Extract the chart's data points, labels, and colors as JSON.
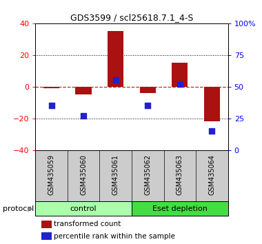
{
  "title": "GDS3599 / scl25618.7.1_4-S",
  "samples": [
    "GSM435059",
    "GSM435060",
    "GSM435061",
    "GSM435062",
    "GSM435063",
    "GSM435064"
  ],
  "transformed_count": [
    -1,
    -5,
    35,
    -4,
    15,
    -22
  ],
  "percentile_rank": [
    35,
    27,
    55,
    35,
    52,
    15
  ],
  "ylim_left": [
    -40,
    40
  ],
  "ylim_right": [
    0,
    100
  ],
  "yticks_left": [
    -40,
    -20,
    0,
    20,
    40
  ],
  "yticks_right": [
    0,
    25,
    50,
    75,
    100
  ],
  "ytick_labels_right": [
    "0",
    "25",
    "50",
    "75",
    "100%"
  ],
  "bar_color": "#aa1111",
  "dot_color": "#2222cc",
  "zero_line_color": "#cc2222",
  "grid_color": "#222222",
  "protocol_label": "protocol",
  "control_label": "control",
  "eset_label": "Eset depletion",
  "legend_red": "transformed count",
  "legend_blue": "percentile rank within the sample",
  "control_color": "#aaffaa",
  "eset_color": "#44dd44",
  "sample_bg_color": "#cccccc",
  "n_control": 3,
  "dot_size": 40,
  "bar_width": 0.5
}
